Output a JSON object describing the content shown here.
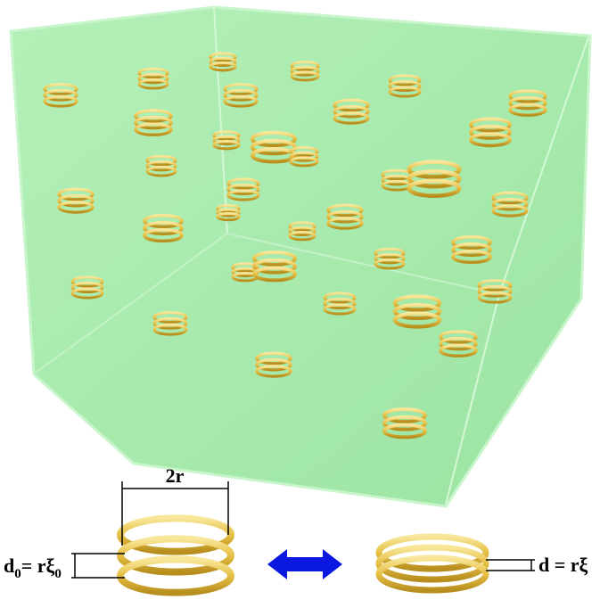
{
  "labels": {
    "width": "2r",
    "left": [
      "d",
      "0",
      "= rξ",
      "0"
    ],
    "right": "d = rξ"
  }
}
